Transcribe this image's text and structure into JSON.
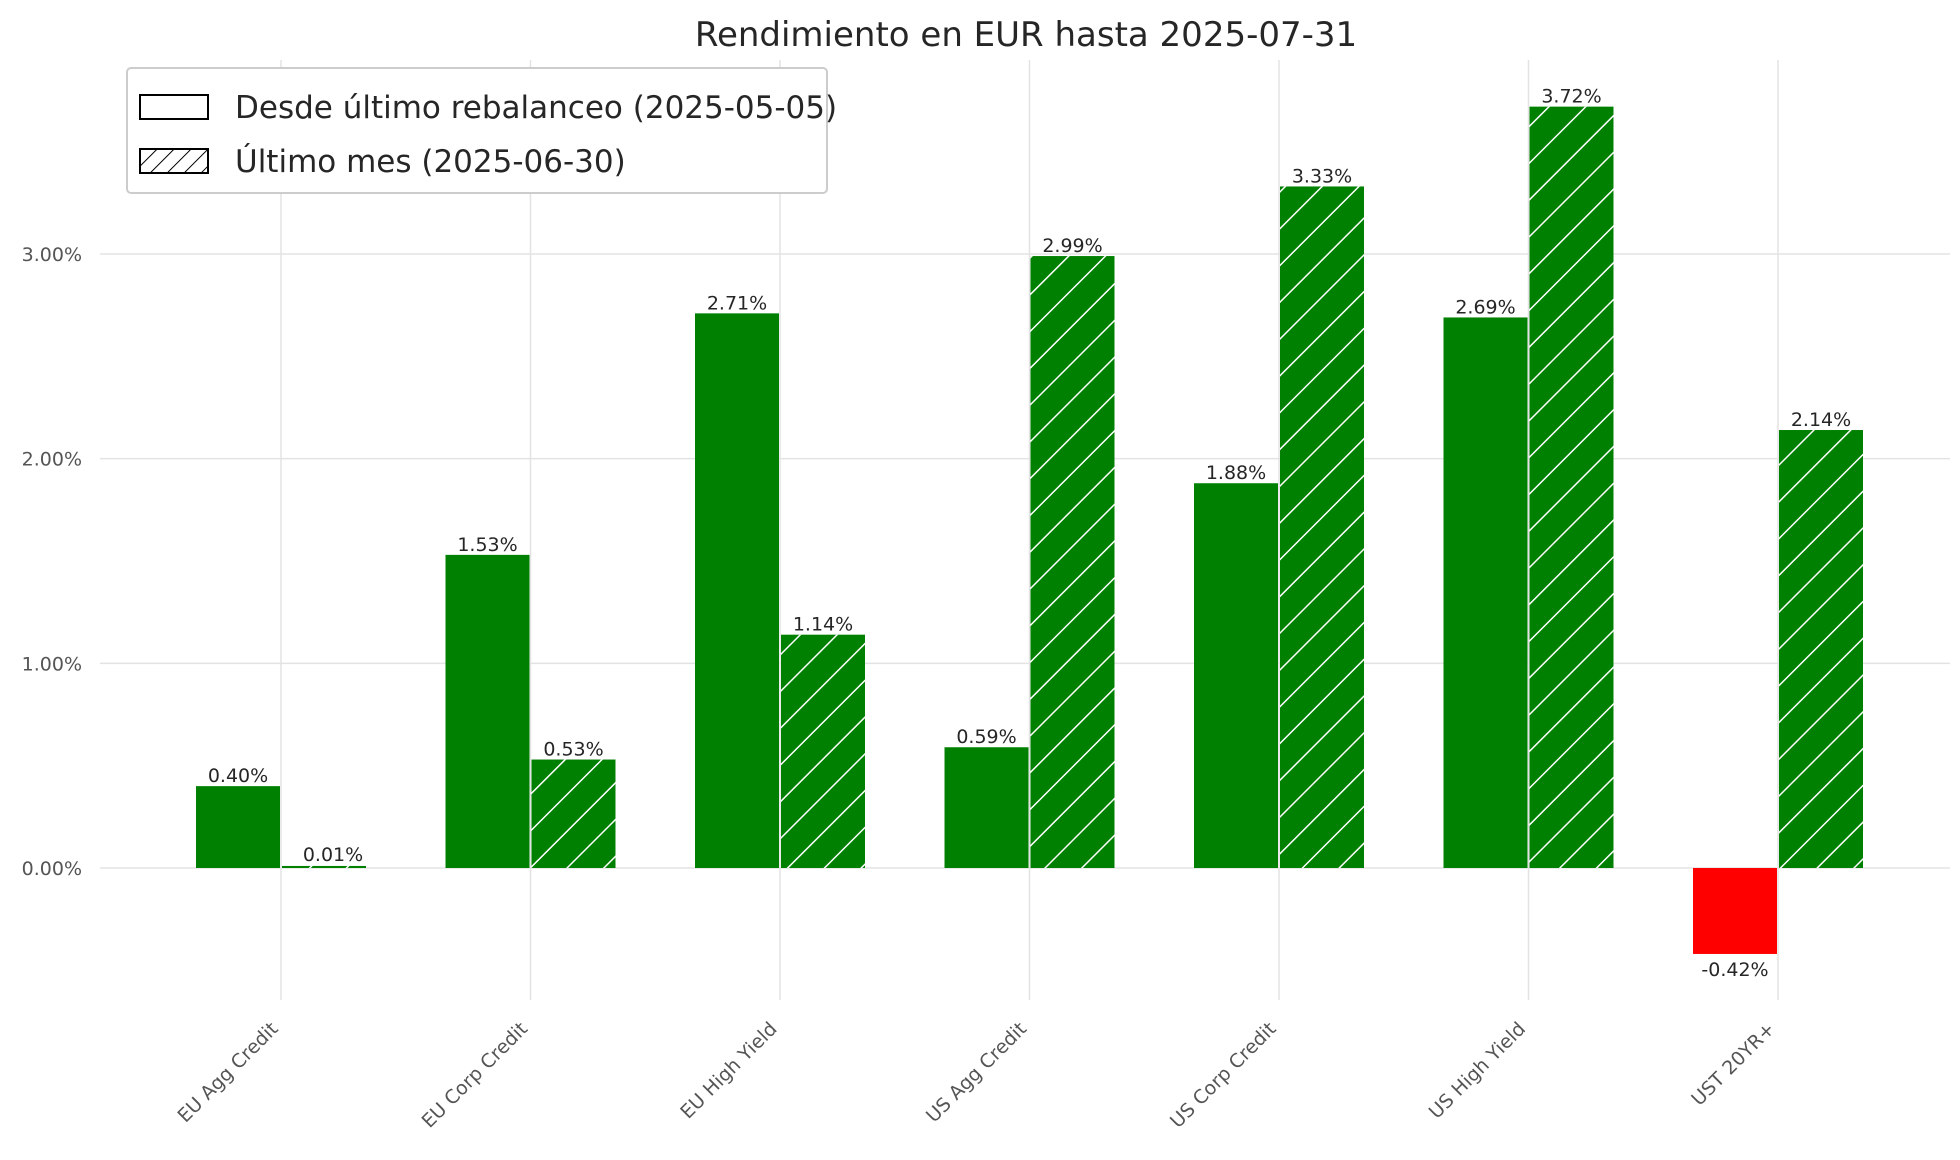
{
  "chart_data": {
    "type": "bar",
    "title": "Rendimiento en EUR hasta 2025-07-31",
    "xlabel": "",
    "ylabel": "",
    "categories": [
      "EU Agg Credit",
      "EU Corp Credit",
      "EU High Yield",
      "US Agg Credit",
      "US Corp Credit",
      "US High Yield",
      "UST 20YR+"
    ],
    "series": [
      {
        "name": "Desde último rebalanceo (2025-05-05)",
        "pattern": "solid",
        "values": [
          0.4,
          1.53,
          2.71,
          0.59,
          1.88,
          2.69,
          -0.42
        ],
        "labels": [
          "0.40%",
          "1.53%",
          "2.71%",
          "0.59%",
          "1.88%",
          "2.69%",
          "-0.42%"
        ]
      },
      {
        "name": "Último mes (2025-06-30)",
        "pattern": "hatched",
        "values": [
          0.01,
          0.53,
          1.14,
          2.99,
          3.33,
          3.72,
          2.14
        ],
        "labels": [
          "0.01%",
          "0.53%",
          "1.14%",
          "2.99%",
          "3.33%",
          "3.72%",
          "2.14%"
        ]
      }
    ],
    "yticks": [
      0,
      1,
      2,
      3
    ],
    "ytick_labels": [
      "0.00%",
      "1.00%",
      "2.00%",
      "3.00%"
    ],
    "ylim": [
      -0.6,
      3.95
    ],
    "grid": true,
    "legend_position": "top-left",
    "colors": {
      "positive": "#008000",
      "negative": "#ff0000",
      "hatch": "#ffffff",
      "grid": "#e3e3e3"
    }
  }
}
